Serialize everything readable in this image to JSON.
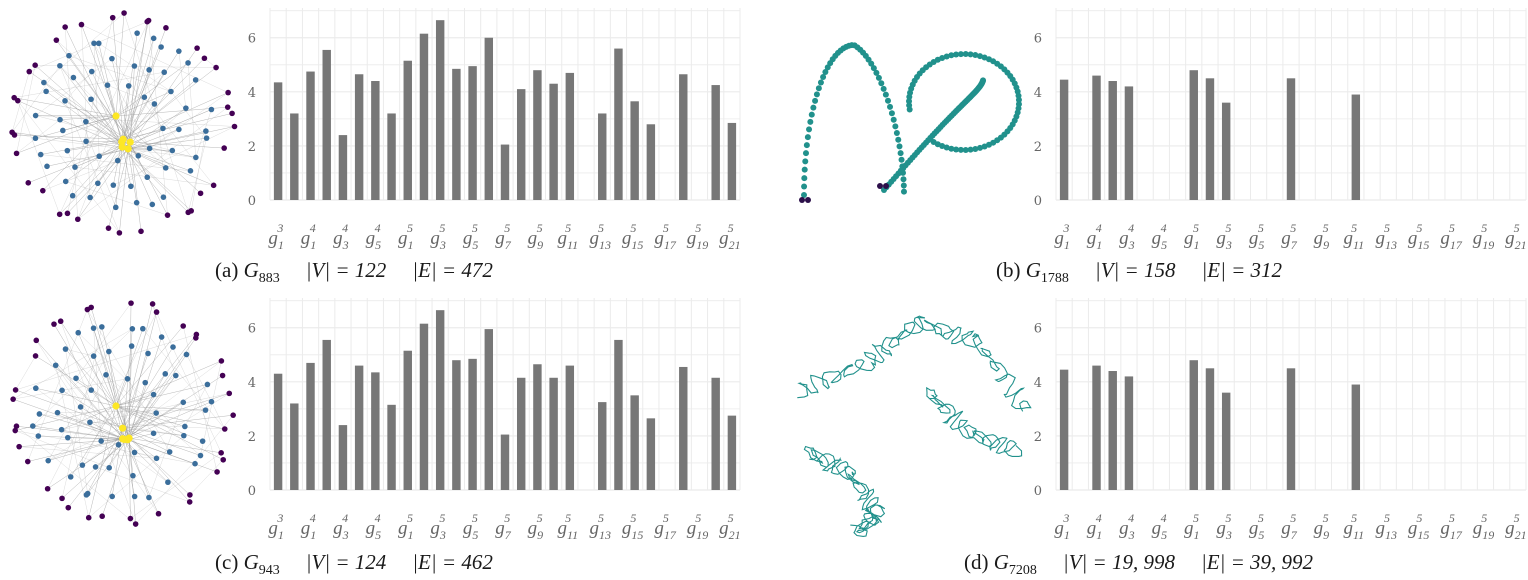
{
  "colors": {
    "bar": "#777777",
    "grid": "#ebebeb",
    "tick_text": "#666666",
    "node_yellow": "#fde725",
    "node_blue": "#3b6e9b",
    "node_purple": "#440154",
    "node_darkpurple": "#2c0f4a",
    "node_teal": "#21918c",
    "edge": "#9a9a9a"
  },
  "tick_labels": [
    [
      "g",
      "1",
      "3"
    ],
    [
      "g",
      "1",
      "4"
    ],
    [
      "g",
      "3",
      "4"
    ],
    [
      "g",
      "5",
      "4"
    ],
    [
      "g",
      "1",
      "5"
    ],
    [
      "g",
      "3",
      "5"
    ],
    [
      "g",
      "5",
      "5"
    ],
    [
      "g",
      "7",
      "5"
    ],
    [
      "g",
      "9",
      "5"
    ],
    [
      "g",
      "11",
      "5"
    ],
    [
      "g",
      "13",
      "5"
    ],
    [
      "g",
      "15",
      "5"
    ],
    [
      "g",
      "17",
      "5"
    ],
    [
      "g",
      "19",
      "5"
    ],
    [
      "g",
      "21",
      "5"
    ]
  ],
  "panels": [
    {
      "id": "a",
      "caption": {
        "prefix": "(a) ",
        "graph": "G",
        "sub": "883",
        "v": "|V| = 122",
        "e": "|E| = 472"
      },
      "network": {
        "style": "hub"
      },
      "chart_data": {
        "type": "bar",
        "ylim": [
          0,
          7.1
        ],
        "yticks": [
          0,
          2,
          4,
          6
        ],
        "values": [
          4.35,
          3.2,
          4.75,
          5.55,
          2.4,
          4.65,
          4.4,
          3.2,
          5.15,
          6.15,
          6.65,
          4.85,
          4.95,
          6.0,
          2.05,
          4.1,
          4.8,
          4.3,
          4.7,
          null,
          3.2,
          5.6,
          3.65,
          2.8,
          null,
          4.65,
          null,
          4.25,
          2.85
        ]
      }
    },
    {
      "id": "b",
      "caption": {
        "prefix": "(b) ",
        "graph": "G",
        "sub": "1788",
        "v": "|V| = 158",
        "e": "|E| = 312"
      },
      "network": {
        "style": "chain"
      },
      "chart_data": {
        "type": "bar",
        "ylim": [
          0,
          7.1
        ],
        "yticks": [
          0,
          2,
          4,
          6
        ],
        "values": [
          4.45,
          null,
          4.6,
          4.4,
          4.2,
          null,
          null,
          null,
          4.8,
          4.5,
          3.6,
          null,
          null,
          null,
          4.5,
          null,
          null,
          null,
          3.9,
          null,
          null,
          null,
          null,
          null,
          null,
          null,
          null,
          null,
          null
        ]
      }
    },
    {
      "id": "c",
      "caption": {
        "prefix": "(c) ",
        "graph": "G",
        "sub": "943",
        "v": "|V| = 124",
        "e": "|E| = 462"
      },
      "network": {
        "style": "hub"
      },
      "chart_data": {
        "type": "bar",
        "ylim": [
          0,
          7.1
        ],
        "yticks": [
          0,
          2,
          4,
          6
        ],
        "values": [
          4.3,
          3.2,
          4.7,
          5.55,
          2.4,
          4.6,
          4.35,
          3.15,
          5.15,
          6.15,
          6.65,
          4.8,
          4.85,
          5.95,
          2.05,
          4.15,
          4.65,
          4.15,
          4.6,
          null,
          3.25,
          5.55,
          3.5,
          2.65,
          null,
          4.55,
          null,
          4.15,
          2.75
        ]
      }
    },
    {
      "id": "d",
      "caption": {
        "prefix": "(d) ",
        "graph": "G",
        "sub": "7208",
        "v": "|V| = 19, 998",
        "e": "|E| = 39, 992"
      },
      "network": {
        "style": "fractal"
      },
      "chart_data": {
        "type": "bar",
        "ylim": [
          0,
          7.1
        ],
        "yticks": [
          0,
          2,
          4,
          6
        ],
        "values": [
          4.45,
          null,
          4.6,
          4.4,
          4.2,
          null,
          null,
          null,
          4.8,
          4.5,
          3.6,
          null,
          null,
          null,
          4.5,
          null,
          null,
          null,
          3.9,
          null,
          null,
          null,
          null,
          null,
          null,
          null,
          null,
          null,
          null
        ]
      }
    }
  ]
}
